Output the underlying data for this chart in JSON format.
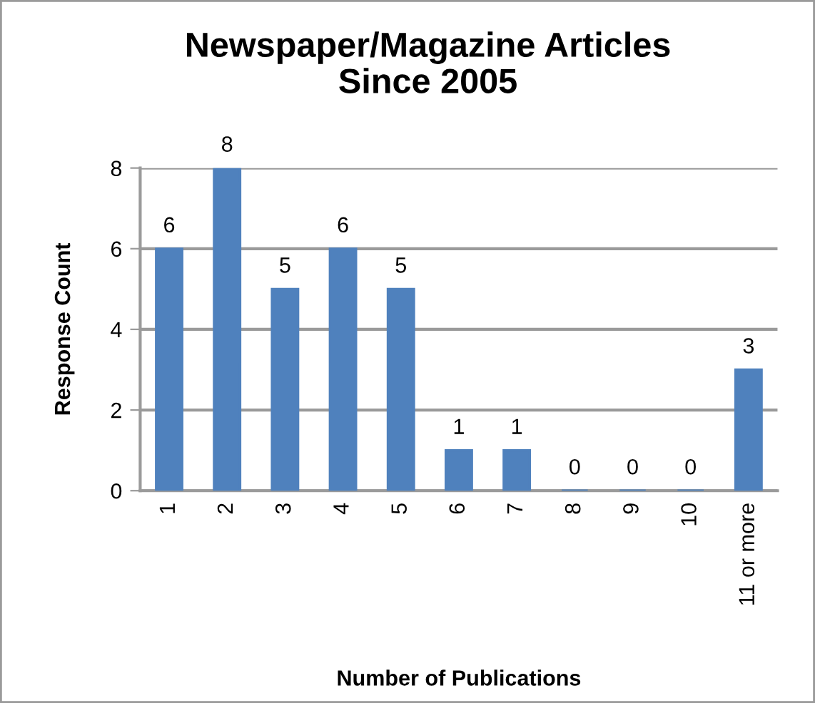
{
  "chart_data": {
    "type": "bar",
    "title": "Newspaper/Magazine Articles\nSince 2005",
    "xlabel": "Number of Publications",
    "ylabel": "Response Count",
    "categories": [
      "1",
      "2",
      "3",
      "4",
      "5",
      "6",
      "7",
      "8",
      "9",
      "10",
      "11 or more"
    ],
    "values": [
      6,
      8,
      5,
      6,
      5,
      1,
      1,
      0,
      0,
      0,
      3
    ],
    "color": "#4f81bd",
    "ylim": [
      0,
      8
    ],
    "yticks": [
      0,
      2,
      4,
      6,
      8
    ],
    "grid": "y",
    "data_labels": true,
    "legend": false
  }
}
